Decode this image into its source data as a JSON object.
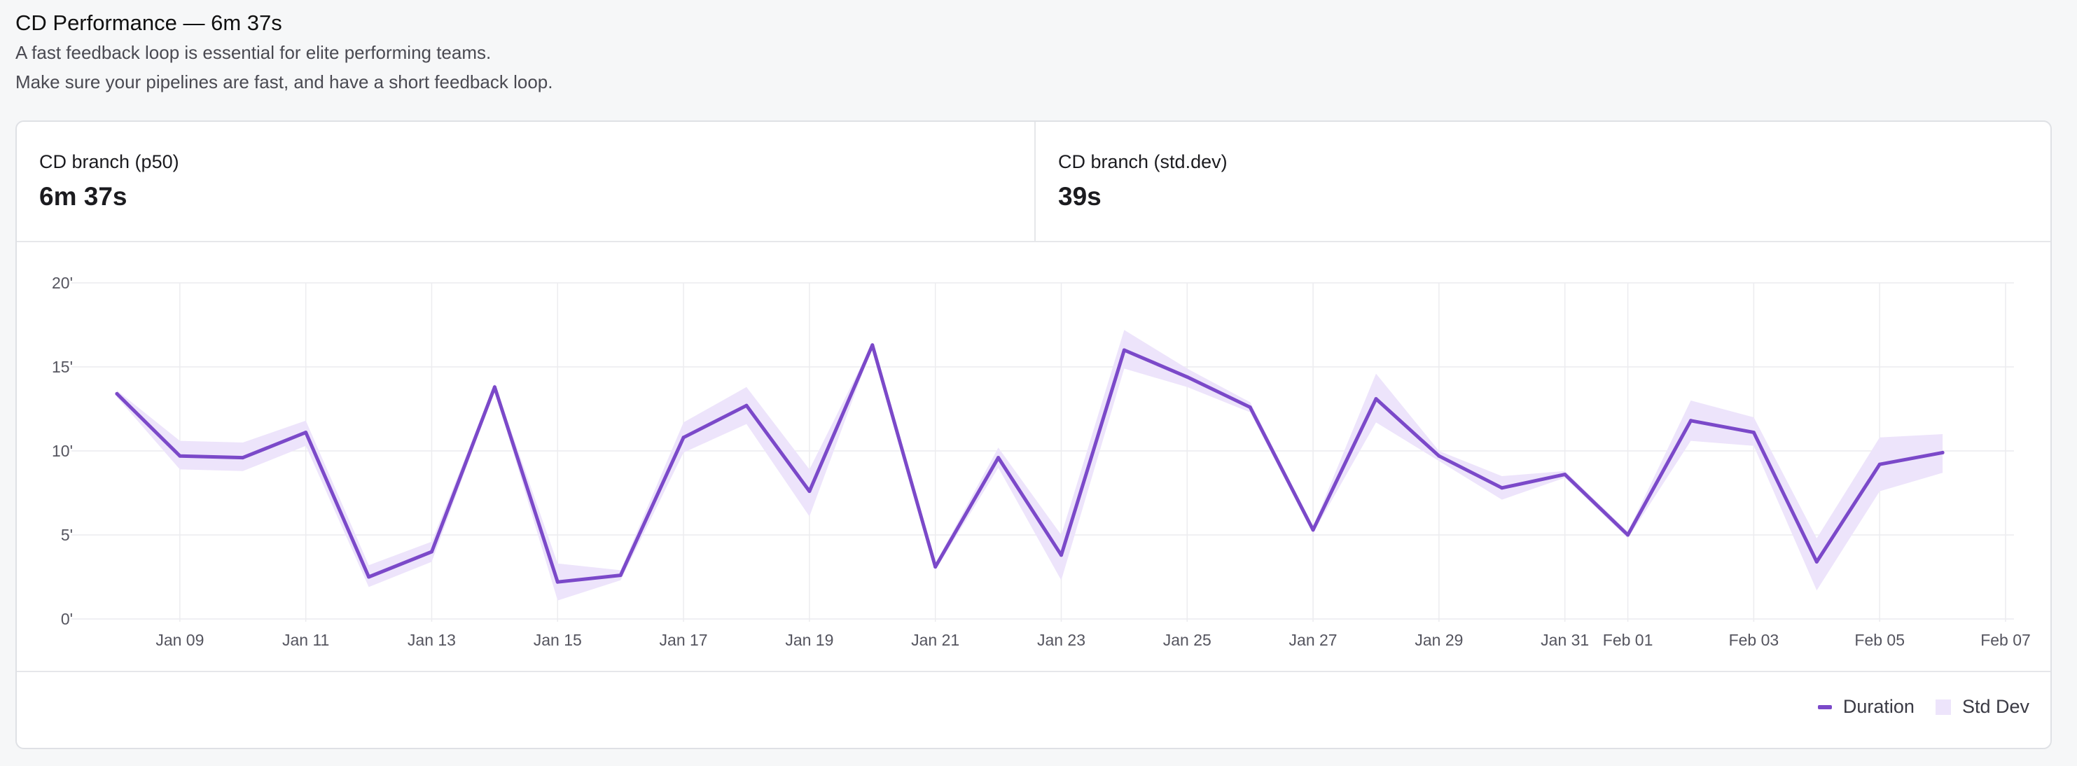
{
  "header": {
    "title": "CD Performance — 6m 37s",
    "line1": "A fast feedback loop is essential for elite performing teams.",
    "line2": "Make sure your pipelines are fast, and have a short feedback loop."
  },
  "stats": {
    "p50_label": "CD branch (p50)",
    "p50_value": "6m 37s",
    "std_label": "CD branch (std.dev)",
    "std_value": "39s"
  },
  "legend": {
    "duration": "Duration",
    "stddev": "Std Dev"
  },
  "colors": {
    "line": "#7b49c9",
    "band": "#ede4fb",
    "grid": "#ececef",
    "axis_text": "#55555f"
  },
  "chart_data": {
    "type": "line",
    "ylim": [
      0,
      20
    ],
    "y_ticks": [
      0,
      5,
      10,
      15,
      20
    ],
    "y_tick_labels": [
      "0'",
      "5'",
      "10'",
      "15'",
      "20'"
    ],
    "x_ticks": [
      "2024-01-09",
      "2024-01-11",
      "2024-01-13",
      "2024-01-15",
      "2024-01-17",
      "2024-01-19",
      "2024-01-21",
      "2024-01-23",
      "2024-01-25",
      "2024-01-27",
      "2024-01-29",
      "2024-01-31",
      "2024-02-01",
      "2024-02-03",
      "2024-02-05",
      "2024-02-07"
    ],
    "x_tick_labels": [
      "Jan 09",
      "Jan 11",
      "Jan 13",
      "Jan 15",
      "Jan 17",
      "Jan 19",
      "Jan 21",
      "Jan 23",
      "Jan 25",
      "Jan 27",
      "Jan 29",
      "Jan 31",
      "Feb 01",
      "Feb 03",
      "Feb 05",
      "Feb 07"
    ],
    "xlim": [
      "2024-01-07T12:00",
      "2024-02-07"
    ],
    "series": [
      {
        "name": "Duration",
        "x": [
          "2024-01-08",
          "2024-01-09",
          "2024-01-10",
          "2024-01-11",
          "2024-01-12",
          "2024-01-13",
          "2024-01-14",
          "2024-01-15",
          "2024-01-16",
          "2024-01-17",
          "2024-01-18",
          "2024-01-19",
          "2024-01-20",
          "2024-01-21",
          "2024-01-22",
          "2024-01-23",
          "2024-01-24",
          "2024-01-25",
          "2024-01-26",
          "2024-01-27",
          "2024-01-28",
          "2024-01-29",
          "2024-01-30",
          "2024-01-31",
          "2024-02-01",
          "2024-02-02",
          "2024-02-03",
          "2024-02-04",
          "2024-02-05",
          "2024-02-06"
        ],
        "values": [
          13.4,
          9.7,
          9.6,
          11.1,
          2.5,
          4.0,
          13.8,
          2.2,
          2.6,
          10.8,
          12.7,
          7.6,
          16.3,
          3.1,
          9.6,
          3.8,
          16.0,
          14.4,
          12.6,
          5.3,
          13.1,
          9.7,
          7.8,
          8.6,
          5.0,
          11.8,
          11.1,
          3.4,
          9.2,
          9.9
        ]
      },
      {
        "name": "Std Dev",
        "x": [
          "2024-01-08",
          "2024-01-09",
          "2024-01-10",
          "2024-01-11",
          "2024-01-12",
          "2024-01-13",
          "2024-01-14",
          "2024-01-15",
          "2024-01-16",
          "2024-01-17",
          "2024-01-18",
          "2024-01-19",
          "2024-01-20",
          "2024-01-21",
          "2024-01-22",
          "2024-01-23",
          "2024-01-24",
          "2024-01-25",
          "2024-01-26",
          "2024-01-27",
          "2024-01-28",
          "2024-01-29",
          "2024-01-30",
          "2024-01-31",
          "2024-02-01",
          "2024-02-02",
          "2024-02-03",
          "2024-02-04",
          "2024-02-05",
          "2024-02-06"
        ],
        "upper": [
          13.6,
          10.6,
          10.5,
          11.8,
          3.2,
          4.6,
          14.0,
          3.3,
          2.9,
          11.7,
          13.8,
          8.9,
          16.4,
          3.3,
          10.2,
          5.0,
          17.2,
          14.9,
          12.9,
          5.5,
          14.6,
          10.0,
          8.5,
          8.8,
          5.2,
          13.0,
          12.0,
          4.8,
          10.8,
          11.0
        ],
        "lower": [
          13.2,
          8.9,
          8.8,
          10.3,
          1.9,
          3.4,
          13.6,
          1.1,
          2.3,
          9.9,
          11.6,
          6.1,
          16.2,
          2.9,
          9.0,
          2.3,
          14.9,
          13.8,
          12.3,
          5.1,
          11.7,
          9.4,
          7.1,
          8.4,
          4.8,
          10.6,
          10.3,
          1.7,
          7.6,
          8.7
        ]
      }
    ],
    "grid": true,
    "legend_position": "bottom-right"
  }
}
